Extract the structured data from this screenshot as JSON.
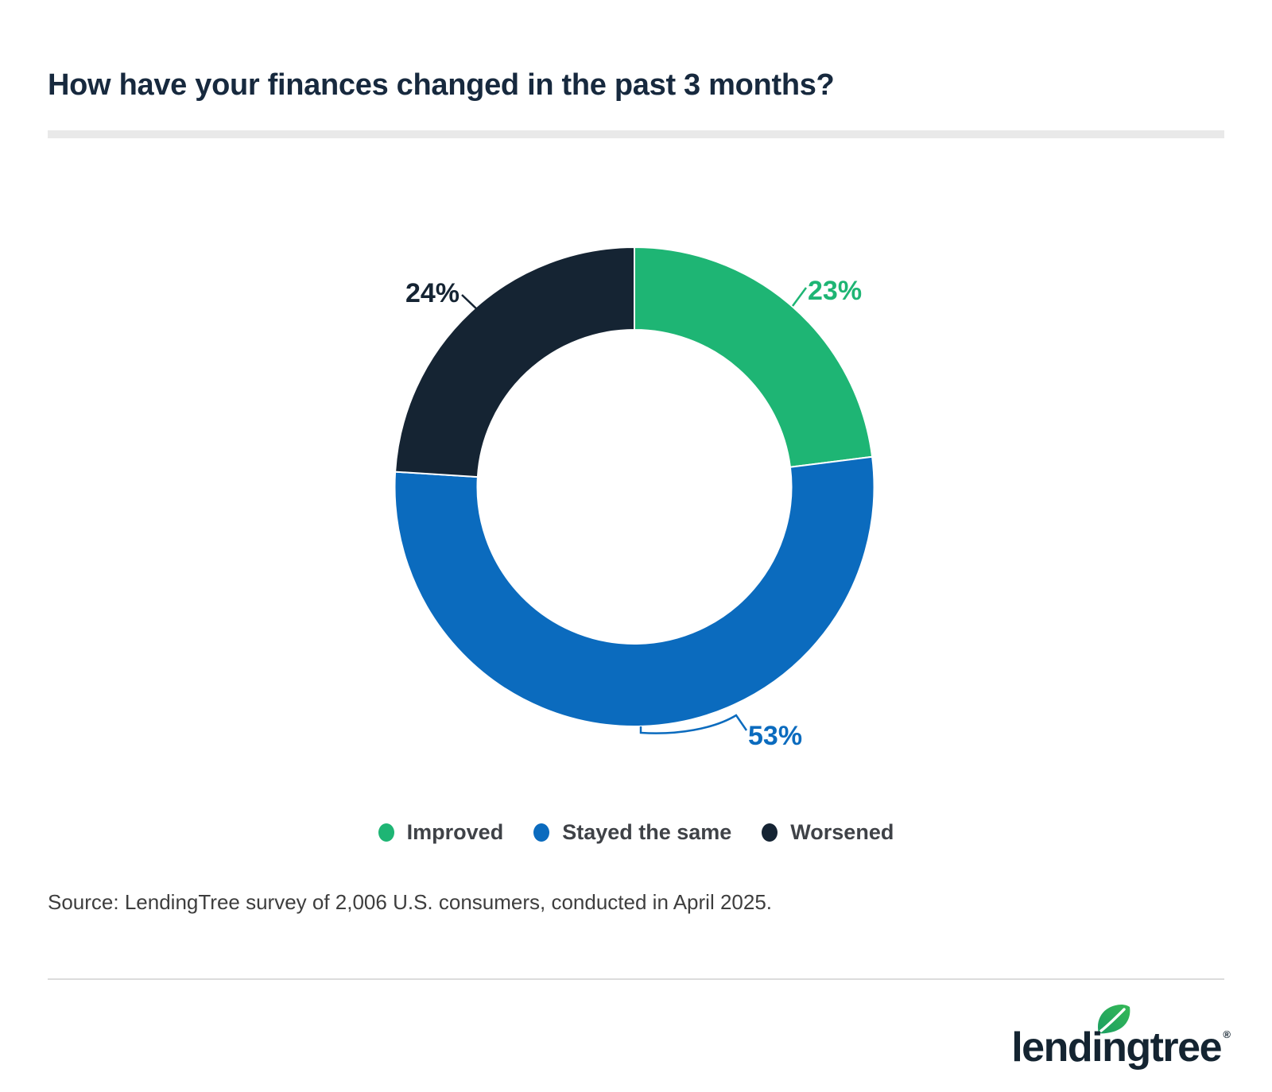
{
  "page": {
    "title": "How have your finances changed in the past 3 months?",
    "source": "Source: LendingTree survey of 2,006 U.S. consumers, conducted in April 2025."
  },
  "chart_data": {
    "type": "pie",
    "subtype": "donut",
    "title": "How have your finances changed in the past 3 months?",
    "start_angle_deg": 0,
    "direction": "clockwise",
    "legend_position": "bottom",
    "segments": [
      {
        "label": "Improved",
        "value": 23,
        "display": "23%",
        "color": "#1eb574"
      },
      {
        "label": "Stayed the same",
        "value": 53,
        "display": "53%",
        "color": "#0b6bbe"
      },
      {
        "label": "Worsened",
        "value": 24,
        "display": "24%",
        "color": "#152433"
      }
    ]
  },
  "branding": {
    "logo_text": "lendingtree",
    "registered_mark": "®",
    "leaf_color_top": "#35b956",
    "leaf_color_bottom": "#1c9e62",
    "navy": "#142431"
  }
}
